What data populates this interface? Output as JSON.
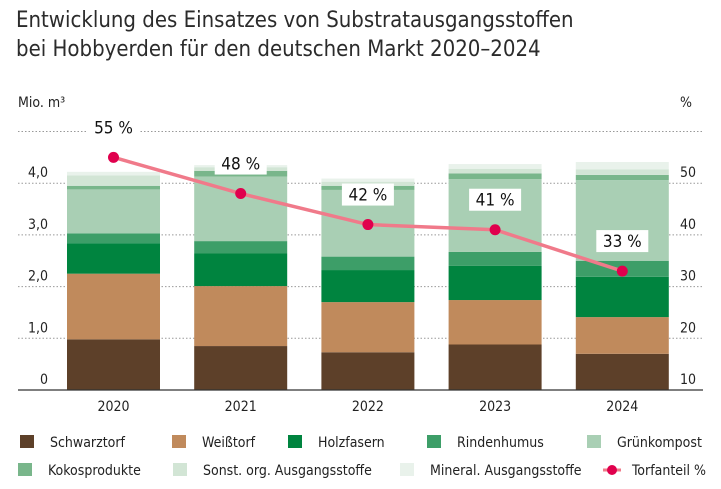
{
  "chart_data": {
    "type": "bar",
    "stacked": true,
    "title_lines": [
      "Entwicklung des Einsatzes von Substratausgangsstoffen",
      "bei Hobbyerden für den deutschen Markt 2020–2024"
    ],
    "ylabel": "Mio. m³",
    "y2label": "%",
    "categories": [
      "2020",
      "2021",
      "2022",
      "2023",
      "2024"
    ],
    "ylim": [
      0,
      5
    ],
    "yticks": [
      0,
      1,
      2,
      3,
      4
    ],
    "ytick_labels": [
      "0",
      "1,0",
      "2,0",
      "3,0",
      "4,0"
    ],
    "y2lim": [
      10,
      60
    ],
    "y2ticks": [
      10,
      20,
      30,
      40,
      50
    ],
    "y2tick_labels": [
      "10",
      "20",
      "30",
      "40",
      "50"
    ],
    "grid": true,
    "legend_placement": "bottom",
    "series": [
      {
        "name": "Schwarztorf",
        "color": "#5d4029",
        "values": [
          0.98,
          0.85,
          0.73,
          0.88,
          0.7
        ]
      },
      {
        "name": "Weißtorf",
        "color": "#c08a5c",
        "values": [
          1.27,
          1.16,
          0.97,
          0.86,
          0.71
        ]
      },
      {
        "name": "Holzfasern",
        "color": "#00843f",
        "values": [
          0.59,
          0.63,
          0.62,
          0.66,
          0.78
        ]
      },
      {
        "name": "Rindenhumus",
        "color": "#3d9e68",
        "values": [
          0.19,
          0.24,
          0.26,
          0.27,
          0.31
        ]
      },
      {
        "name": "Grünkompost",
        "color": "#a9cfb4",
        "values": [
          0.85,
          1.25,
          1.29,
          1.41,
          1.56
        ]
      },
      {
        "name": "Kokosprodukte",
        "color": "#79b68b",
        "values": [
          0.07,
          0.11,
          0.08,
          0.11,
          0.1
        ]
      },
      {
        "name": "Sonst. org. Ausgangsstoffe",
        "color": "#d2e5d5",
        "values": [
          0.2,
          0.07,
          0.08,
          0.09,
          0.11
        ]
      },
      {
        "name": "Mineral. Ausgangsstoffe",
        "color": "#e9f2eb",
        "values": [
          0.07,
          0.04,
          0.06,
          0.09,
          0.14
        ]
      }
    ],
    "line_series": {
      "name": "Torfanteil %",
      "axis": "right",
      "line_color": "#f07a8a",
      "marker_color": "#e0004d",
      "values": [
        55,
        48,
        42,
        41,
        33
      ],
      "labels": [
        "55 %",
        "48 %",
        "42 %",
        "41 %",
        "33 %"
      ]
    }
  }
}
